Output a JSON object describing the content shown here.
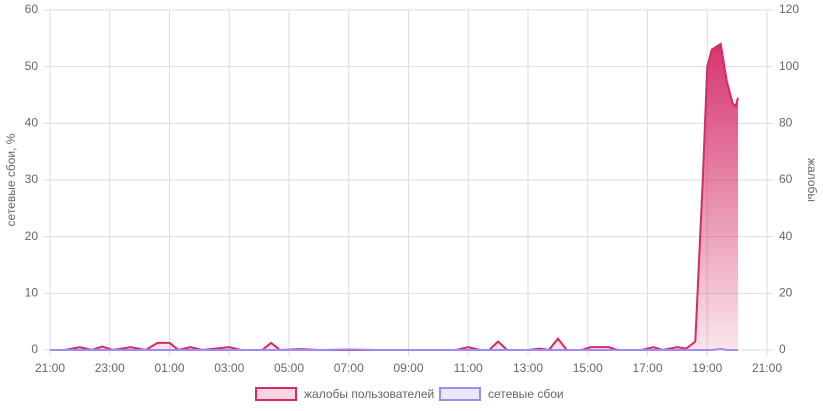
{
  "chart_data": {
    "type": "area",
    "y_label": "сетевые сбои, %",
    "y2_label": "жалобы",
    "xlim": [
      0,
      24
    ],
    "xticks": [
      {
        "value": 0,
        "label": "21:00"
      },
      {
        "value": 2,
        "label": "23:00"
      },
      {
        "value": 4,
        "label": "01:00"
      },
      {
        "value": 6,
        "label": "03:00"
      },
      {
        "value": 8,
        "label": "05:00"
      },
      {
        "value": 10,
        "label": "07:00"
      },
      {
        "value": 12,
        "label": "09:00"
      },
      {
        "value": 14,
        "label": "11:00"
      },
      {
        "value": 16,
        "label": "13:00"
      },
      {
        "value": 18,
        "label": "15:00"
      },
      {
        "value": 20,
        "label": "17:00"
      },
      {
        "value": 22,
        "label": "19:00"
      },
      {
        "value": 24,
        "label": "21:00"
      }
    ],
    "ylim": [
      0,
      60
    ],
    "yticks": [
      0,
      10,
      20,
      30,
      40,
      50,
      60
    ],
    "y2lim": [
      0,
      120
    ],
    "y2ticks": [
      0,
      20,
      40,
      60,
      80,
      100,
      120
    ],
    "grid": true,
    "legend": "bottom",
    "x": [
      0,
      0.5,
      1,
      1.4,
      1.75,
      2.1,
      2.7,
      3.2,
      3.6,
      4,
      4.3,
      4.7,
      5.1,
      6,
      6.4,
      7.1,
      7.4,
      7.7,
      8.4,
      9,
      10,
      11,
      12,
      13,
      13.6,
      14,
      14.4,
      14.7,
      15,
      15.3,
      16,
      16.4,
      16.7,
      17,
      17.3,
      17.8,
      18.1,
      18.4,
      18.7,
      19,
      19.8,
      20.2,
      20.5,
      21,
      21.3,
      21.6,
      21.85,
      22,
      22.15,
      22.45,
      22.65,
      22.85,
      22.95,
      23.03
    ],
    "series": [
      {
        "name": "жалобы пользователей",
        "color": "#d42a68",
        "axis": "y2",
        "values": [
          0,
          0,
          1,
          0,
          1.2,
          0,
          1,
          0,
          2.5,
          2.5,
          0,
          1,
          0,
          1,
          0,
          0,
          2.5,
          0,
          0.3,
          0,
          0,
          0,
          0,
          0,
          0,
          1,
          0,
          0,
          3,
          0,
          0,
          0.5,
          0,
          4,
          0,
          0,
          1,
          1,
          1,
          0,
          0,
          1,
          0,
          1,
          0.5,
          3,
          60,
          100,
          106,
          108,
          95,
          87,
          86,
          89
        ]
      },
      {
        "name": "сетевые сбои",
        "color": "#9d8cf2",
        "values": [
          0,
          0,
          0,
          0,
          0,
          0,
          0,
          0,
          0,
          0,
          0,
          0,
          0,
          0,
          0,
          0,
          0,
          0,
          0,
          0,
          0.1,
          0,
          0,
          0,
          0,
          0,
          0,
          0,
          0,
          0,
          0,
          0,
          0,
          0,
          0,
          0,
          0,
          0,
          0,
          0,
          0,
          0,
          0,
          0,
          0,
          0,
          0,
          0,
          0,
          0.2,
          0,
          0,
          0,
          0
        ]
      }
    ]
  }
}
